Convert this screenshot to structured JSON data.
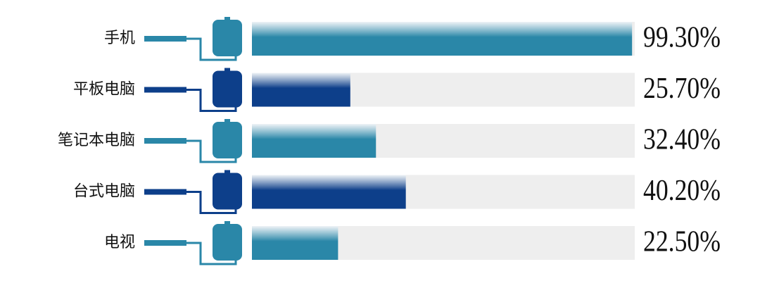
{
  "chart_data": {
    "type": "bar",
    "categories": [
      "手机",
      "平板电脑",
      "笔记本电脑",
      "台式电脑",
      "电视"
    ],
    "values": [
      99.3,
      25.7,
      32.4,
      40.2,
      22.5
    ],
    "value_labels": [
      "99.30%",
      "25.70%",
      "32.40%",
      "40.20%",
      "22.50%"
    ],
    "colors": [
      "#2a87a8",
      "#0d3f8a",
      "#2a87a8",
      "#0d3f8a",
      "#2a87a8"
    ],
    "xlim": [
      0,
      100
    ]
  }
}
